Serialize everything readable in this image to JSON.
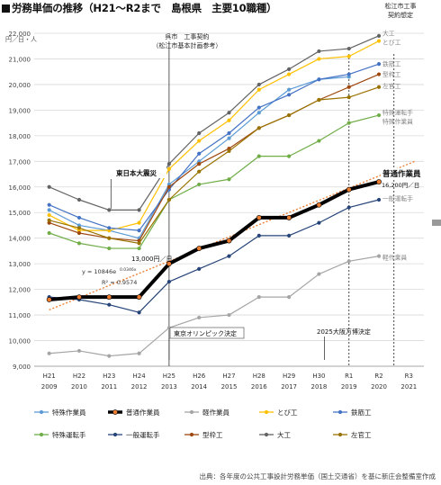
{
  "title": "労務単価の推移（H21～R2まで　島根県　主要10職種）",
  "source": "出典：各年度の公共工事設計労務単価（国土交通省）を基に新庄会整備室作成",
  "chart_data": {
    "type": "line",
    "unit_label": "円／日・人",
    "ylim": [
      9000,
      22000
    ],
    "yticks": [
      9000,
      10000,
      11000,
      12000,
      13000,
      14000,
      15000,
      16000,
      17000,
      18000,
      19000,
      20000,
      21000,
      22000
    ],
    "ytick_labels": [
      "9,000",
      "10,000",
      "11,000",
      "12,000",
      "13,000",
      "14,000",
      "15,000",
      "16,000",
      "17,000",
      "18,000",
      "19,000",
      "20,000",
      "21,000",
      "22,000"
    ],
    "categories": [
      "H21",
      "H22",
      "H23",
      "H24",
      "H25",
      "H26",
      "H27",
      "H28",
      "H29",
      "H30",
      "R1",
      "R2",
      "R3"
    ],
    "years": [
      "2009",
      "2010",
      "2011",
      "2012",
      "2013",
      "2014",
      "2015",
      "2016",
      "2017",
      "2018",
      "2019",
      "2020",
      "2021"
    ],
    "series": [
      {
        "name": "特殊作業員",
        "color": "#5b9bd5",
        "marker": "circle",
        "width": 1.2,
        "values": [
          15100,
          14500,
          14300,
          14000,
          16100,
          17000,
          17900,
          18900,
          19800,
          20200,
          20300,
          null,
          null
        ]
      },
      {
        "name": "普通作業員",
        "color": "#000000",
        "marker": "circle",
        "width": 4,
        "values": [
          11600,
          11700,
          11700,
          11700,
          13000,
          13600,
          13900,
          14800,
          14800,
          15300,
          15900,
          16200,
          null
        ]
      },
      {
        "name": "軽作業員",
        "color": "#a5a5a5",
        "marker": "circle",
        "width": 1.2,
        "values": [
          9500,
          9600,
          9400,
          9500,
          10500,
          10900,
          11000,
          11700,
          11700,
          12600,
          13100,
          13300,
          null
        ]
      },
      {
        "name": "とび工",
        "color": "#ffc000",
        "marker": "circle",
        "width": 1.2,
        "values": [
          14900,
          14300,
          14300,
          14600,
          16700,
          17800,
          18600,
          19800,
          20400,
          21000,
          21100,
          21700,
          null
        ]
      },
      {
        "name": "鉄筋工",
        "color": "#4472c4",
        "marker": "circle",
        "width": 1.2,
        "values": [
          15300,
          14800,
          14400,
          14300,
          15900,
          17300,
          18100,
          19100,
          19600,
          20200,
          20400,
          20800,
          null
        ]
      },
      {
        "name": "特殊運転手",
        "color": "#70ad47",
        "marker": "circle",
        "width": 1.2,
        "values": [
          14200,
          13800,
          13600,
          13600,
          15500,
          16100,
          16300,
          17200,
          17200,
          17800,
          18500,
          18800,
          null
        ]
      },
      {
        "name": "一般運転手",
        "color": "#264478",
        "marker": "circle",
        "width": 1.2,
        "values": [
          11700,
          11600,
          11400,
          11100,
          12300,
          12800,
          13300,
          14100,
          14100,
          14600,
          15200,
          15500,
          null
        ]
      },
      {
        "name": "型枠工",
        "color": "#9e480e",
        "marker": "circle",
        "width": 1.2,
        "values": [
          14600,
          14200,
          14000,
          13900,
          16000,
          16900,
          17500,
          18300,
          18800,
          19400,
          19900,
          20400,
          null
        ]
      },
      {
        "name": "大工",
        "color": "#636363",
        "marker": "circle",
        "width": 1.2,
        "values": [
          16000,
          15500,
          15100,
          15100,
          16900,
          18100,
          18900,
          20000,
          20600,
          21300,
          21400,
          21900,
          null
        ]
      },
      {
        "name": "左官工",
        "color": "#997300",
        "marker": "circle",
        "width": 1.2,
        "values": [
          14700,
          14400,
          14000,
          13800,
          15500,
          16600,
          17400,
          18300,
          18800,
          19400,
          19500,
          19900,
          null
        ]
      }
    ],
    "trendline": {
      "color": "#ed7d31",
      "y_start": 11200,
      "y_end": 17000,
      "x_start": 0,
      "x_end": 12.2
    },
    "annotations": {
      "kure_title": "呉市　工事契約",
      "kure_sub": "（松江市基本計画参考）",
      "matsue_l1": "松江市工事",
      "matsue_l2": "契約想定",
      "east_japan": "東日本大震災",
      "olympics": "東京オリンピック決定",
      "expo": "2025大阪万博決定",
      "wage_2013": "13,000円／日",
      "futsu_label": "普通作業員",
      "wage_2020": "16,200円／日",
      "eq1": "y = 10846e",
      "eq1_exp": "0.0346x",
      "eq2": "R² = 0.9574"
    },
    "right_labels": [
      {
        "text": "大工",
        "y": 22000,
        "color": "#888"
      },
      {
        "text": "とび工",
        "y": 21650,
        "color": "#888"
      },
      {
        "text": "鉄筋工",
        "y": 20800,
        "color": "#888"
      },
      {
        "text": "型枠工",
        "y": 20400,
        "color": "#888"
      },
      {
        "text": "左官工",
        "y": 19950,
        "color": "#888"
      },
      {
        "text": "特殊運転手",
        "y": 18900,
        "color": "#888"
      },
      {
        "text": "特殊作業員",
        "y": 18550,
        "color": "#888"
      },
      {
        "text": "一般運転手",
        "y": 15550,
        "color": "#888"
      },
      {
        "text": "軽作業員",
        "y": 13250,
        "color": "#888"
      }
    ]
  }
}
